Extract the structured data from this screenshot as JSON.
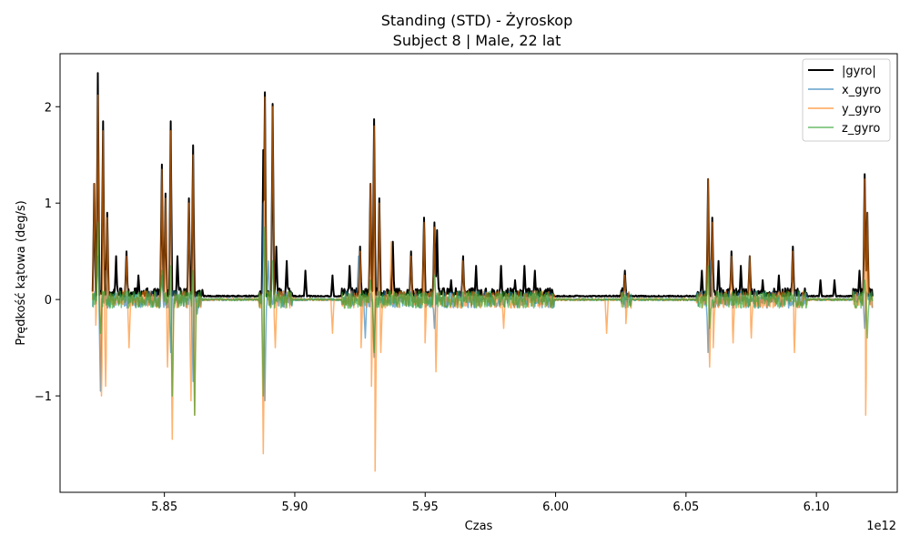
{
  "chart_data": {
    "type": "line",
    "title": "Standing (STD) - Żyroskop",
    "subtitle": "Subject 8 | Male, 22 lat",
    "xlabel": "Czas",
    "ylabel": "Prędkość kątowa (deg/s)",
    "x_offset_label": "1e12",
    "xlim": [
      5.81,
      6.131
    ],
    "ylim": [
      -2.0,
      2.55
    ],
    "x_ticks": [
      5.85,
      5.9,
      5.95,
      6.0,
      6.05,
      6.1
    ],
    "x_tick_labels": [
      "5.85",
      "5.90",
      "5.95",
      "6.00",
      "6.05",
      "6.10"
    ],
    "y_ticks": [
      -1,
      0,
      1,
      2
    ],
    "y_tick_labels": [
      "−1",
      "0",
      "1",
      "2"
    ],
    "grid": false,
    "legend_position": "top-right",
    "x_range": [
      5.8225,
      6.1215
    ],
    "series": [
      {
        "name": "|gyro|",
        "color": "#000000",
        "baseline": 0.03,
        "peaks": [
          [
            5.8245,
            2.35
          ],
          [
            5.8265,
            1.85
          ],
          [
            5.823,
            1.2
          ],
          [
            5.828,
            0.9
          ],
          [
            5.8315,
            0.45
          ],
          [
            5.8355,
            0.5
          ],
          [
            5.84,
            0.25
          ],
          [
            5.849,
            1.4
          ],
          [
            5.8505,
            1.1
          ],
          [
            5.8525,
            1.85
          ],
          [
            5.855,
            0.45
          ],
          [
            5.8595,
            1.05
          ],
          [
            5.861,
            1.6
          ],
          [
            5.8645,
            0.1
          ],
          [
            5.888,
            1.55
          ],
          [
            5.8885,
            2.15
          ],
          [
            5.8915,
            2.03
          ],
          [
            5.893,
            0.55
          ],
          [
            5.897,
            0.4
          ],
          [
            5.904,
            0.3
          ],
          [
            5.9145,
            0.25
          ],
          [
            5.921,
            0.35
          ],
          [
            5.925,
            0.55
          ],
          [
            5.929,
            1.2
          ],
          [
            5.9305,
            1.87
          ],
          [
            5.9325,
            1.05
          ],
          [
            5.9375,
            0.6
          ],
          [
            5.9445,
            0.5
          ],
          [
            5.9495,
            0.85
          ],
          [
            5.9535,
            0.8
          ],
          [
            5.9545,
            0.72
          ],
          [
            5.96,
            0.2
          ],
          [
            5.9645,
            0.45
          ],
          [
            5.9695,
            0.35
          ],
          [
            5.979,
            0.35
          ],
          [
            5.9845,
            0.2
          ],
          [
            5.988,
            0.35
          ],
          [
            5.992,
            0.3
          ],
          [
            6.0265,
            0.3
          ],
          [
            6.056,
            0.3
          ],
          [
            6.0585,
            1.25
          ],
          [
            6.06,
            0.85
          ],
          [
            6.0625,
            0.4
          ],
          [
            6.0675,
            0.5
          ],
          [
            6.071,
            0.35
          ],
          [
            6.0745,
            0.45
          ],
          [
            6.0795,
            0.2
          ],
          [
            6.0855,
            0.25
          ],
          [
            6.091,
            0.55
          ],
          [
            6.1015,
            0.2
          ],
          [
            6.107,
            0.2
          ],
          [
            6.1165,
            0.3
          ],
          [
            6.1185,
            1.3
          ],
          [
            6.1195,
            0.9
          ]
        ]
      },
      {
        "name": "x_gyro",
        "color": "#1f77b4",
        "baseline": 0.0,
        "peaks": [
          [
            5.8245,
            0.45
          ],
          [
            5.8255,
            -0.95
          ],
          [
            5.8275,
            0.3
          ],
          [
            5.849,
            0.25
          ],
          [
            5.8525,
            -0.55
          ],
          [
            5.861,
            -0.85
          ],
          [
            5.8625,
            -0.15
          ],
          [
            5.888,
            1.0
          ],
          [
            5.8885,
            -1.05
          ],
          [
            5.89,
            0.4
          ],
          [
            5.9245,
            0.45
          ],
          [
            5.927,
            -0.4
          ],
          [
            5.9305,
            -0.6
          ],
          [
            5.9535,
            -0.3
          ],
          [
            6.0585,
            -0.55
          ],
          [
            6.0595,
            0.4
          ],
          [
            6.1185,
            -0.3
          ]
        ]
      },
      {
        "name": "y_gyro",
        "color": "#ff7f0e",
        "baseline": 0.0,
        "peaks": [
          [
            5.8245,
            2.12
          ],
          [
            5.8258,
            -1.0
          ],
          [
            5.8265,
            1.75
          ],
          [
            5.823,
            1.2
          ],
          [
            5.8275,
            -0.9
          ],
          [
            5.828,
            0.85
          ],
          [
            5.8235,
            -0.4
          ],
          [
            5.8355,
            0.45
          ],
          [
            5.8365,
            -0.5
          ],
          [
            5.849,
            1.35
          ],
          [
            5.8505,
            1.05
          ],
          [
            5.8512,
            -0.7
          ],
          [
            5.8525,
            1.75
          ],
          [
            5.853,
            -1.45
          ],
          [
            5.8595,
            1.0
          ],
          [
            5.8602,
            -1.05
          ],
          [
            5.861,
            1.5
          ],
          [
            5.8615,
            -1.2
          ],
          [
            5.8885,
            2.1
          ],
          [
            5.888,
            -1.6
          ],
          [
            5.8915,
            2.0
          ],
          [
            5.8925,
            -0.5
          ],
          [
            5.9145,
            -0.35
          ],
          [
            5.925,
            0.5
          ],
          [
            5.9255,
            -0.5
          ],
          [
            5.929,
            1.2
          ],
          [
            5.9295,
            -0.9
          ],
          [
            5.9305,
            1.8
          ],
          [
            5.9308,
            -1.78
          ],
          [
            5.9325,
            1.0
          ],
          [
            5.933,
            -0.55
          ],
          [
            5.937,
            0.6
          ],
          [
            5.9445,
            0.45
          ],
          [
            5.9495,
            0.8
          ],
          [
            5.95,
            -0.45
          ],
          [
            5.9535,
            0.75
          ],
          [
            5.9542,
            -0.75
          ],
          [
            5.9645,
            0.4
          ],
          [
            5.98,
            -0.3
          ],
          [
            6.0195,
            -0.35
          ],
          [
            6.0265,
            0.25
          ],
          [
            6.027,
            -0.25
          ],
          [
            6.0585,
            1.25
          ],
          [
            6.059,
            -0.7
          ],
          [
            6.06,
            0.8
          ],
          [
            6.0605,
            -0.5
          ],
          [
            6.0675,
            0.45
          ],
          [
            6.068,
            -0.45
          ],
          [
            6.0745,
            0.45
          ],
          [
            6.075,
            -0.4
          ],
          [
            6.091,
            0.5
          ],
          [
            6.0915,
            -0.55
          ],
          [
            6.1185,
            1.25
          ],
          [
            6.119,
            -1.2
          ],
          [
            6.1195,
            0.9
          ]
        ]
      },
      {
        "name": "z_gyro",
        "color": "#2ca02c",
        "baseline": 0.0,
        "peaks": [
          [
            5.8245,
            0.8
          ],
          [
            5.8255,
            -0.35
          ],
          [
            5.849,
            0.3
          ],
          [
            5.8525,
            0.35
          ],
          [
            5.853,
            -1.0
          ],
          [
            5.861,
            0.3
          ],
          [
            5.8615,
            -1.2
          ],
          [
            5.888,
            -1.0
          ],
          [
            5.8885,
            0.75
          ],
          [
            5.8915,
            0.4
          ],
          [
            5.929,
            0.2
          ],
          [
            5.9305,
            -0.55
          ],
          [
            5.9535,
            0.25
          ],
          [
            6.0585,
            0.35
          ],
          [
            6.059,
            -0.3
          ],
          [
            6.1185,
            0.2
          ],
          [
            6.1195,
            -0.4
          ]
        ]
      }
    ]
  }
}
